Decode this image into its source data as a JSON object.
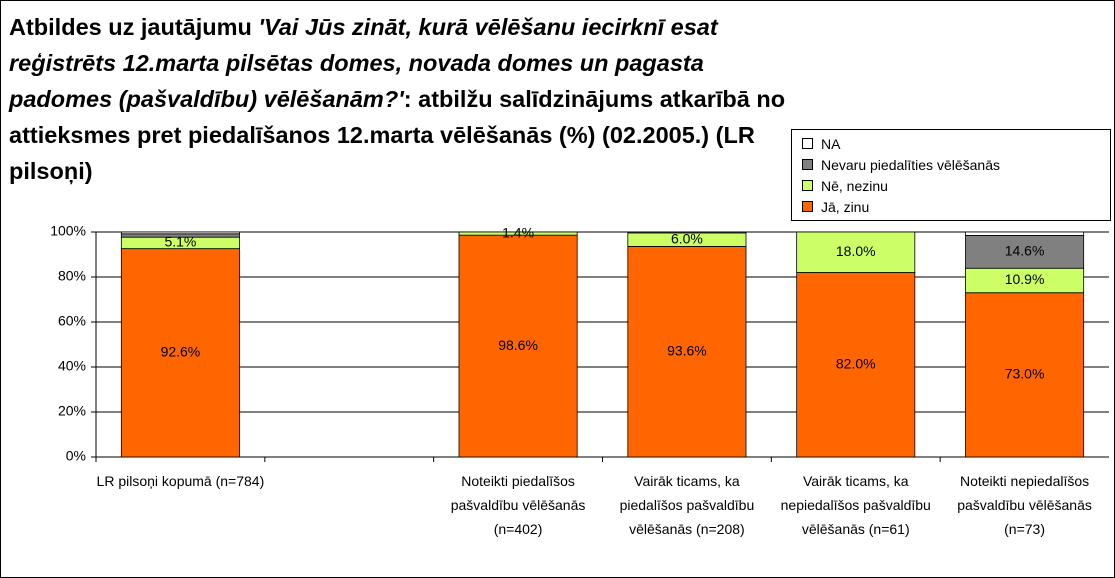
{
  "chart_data": {
    "type": "stacked_bar",
    "title": [
      "Atbildes uz jautājumu ",
      "'Vai Jūs zināt, kurā vēlēšanu iecirknī esat reģistrēts 12.marta pilsētas domes, novada domes un pagasta padomes (pašvaldību) vēlēšanām?'",
      ": atbilžu salīdzinājums atkarībā no attieksmes pret piedalīšanos 12.marta vēlēšanās (%) (02.2005.) (LR pilsoņi)"
    ],
    "categories": [
      "LR pilsoņi kopumā (n=784)",
      null,
      "Noteikti piedalīšos pašvaldību vēlēšanās (n=402)",
      "Vairāk ticams, ka piedalīšos pašvaldību vēlēšanās (n=208)",
      "Vairāk ticams, ka nepiedalīšos pašvaldību vēlēšanās (n=61)",
      "Noteikti nepiedalīšos pašvaldību vēlēšanās (n=73)"
    ],
    "series": [
      {
        "name": "Jā, zinu",
        "color": "#ff6600",
        "values": [
          92.6,
          null,
          98.6,
          93.6,
          82.0,
          73.0
        ],
        "value_labels": [
          "92.6%",
          null,
          "98.6%",
          "93.6%",
          "82.0%",
          "73.0%"
        ]
      },
      {
        "name": "Nē, nezinu",
        "color": "#ccff66",
        "values": [
          5.1,
          null,
          1.4,
          6.0,
          18.0,
          10.9
        ],
        "value_labels": [
          "5.1%",
          null,
          "1.4%",
          "6.0%",
          "18.0%",
          "10.9%"
        ]
      },
      {
        "name": "Nevaru piedalīties vēlēšanās",
        "color": "#808080",
        "values": [
          1.5,
          null,
          0,
          0,
          0,
          14.6
        ],
        "value_labels": [
          null,
          null,
          null,
          null,
          null,
          "14.6%"
        ]
      },
      {
        "name": "NA",
        "color": "#ffffff",
        "values": [
          0.8,
          null,
          0,
          0.4,
          0,
          1.5
        ],
        "value_labels": [
          null,
          null,
          null,
          null,
          null,
          null
        ]
      }
    ],
    "ylim": [
      0,
      100
    ],
    "yticks": [
      {
        "value": 0,
        "label": "0%"
      },
      {
        "value": 20,
        "label": "20%"
      },
      {
        "value": 40,
        "label": "40%"
      },
      {
        "value": 60,
        "label": "60%"
      },
      {
        "value": 80,
        "label": "80%"
      },
      {
        "value": 100,
        "label": "100%"
      }
    ],
    "grid": true,
    "legend": "top-right"
  }
}
